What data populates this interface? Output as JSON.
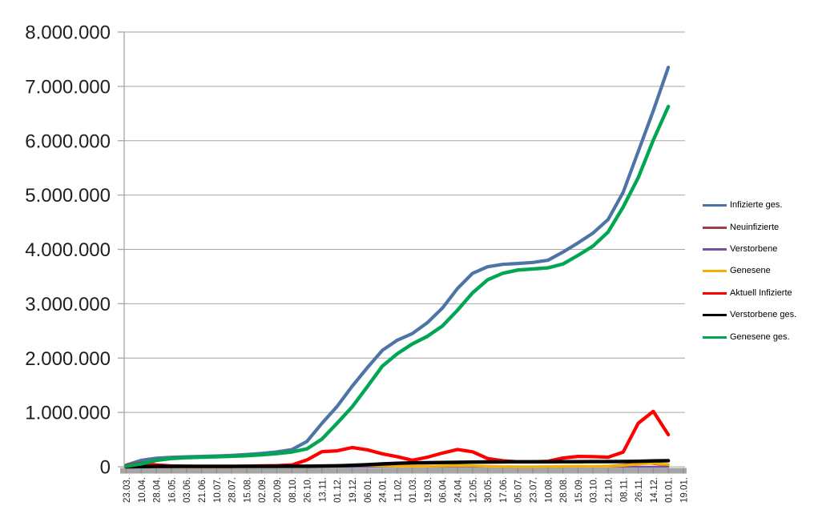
{
  "chart_data": {
    "type": "line",
    "title": "",
    "xlabel": "",
    "ylabel": "",
    "grid": true,
    "legend_position": "right",
    "ylim": [
      0,
      8000000
    ],
    "ytick_labels": [
      "0",
      "1.000.000",
      "2.000.000",
      "3.000.000",
      "4.000.000",
      "5.000.000",
      "6.000.000",
      "7.000.000",
      "8.000.000"
    ],
    "axis_color": "#a6a6a6",
    "band_tick_color": "#8f8f8f",
    "tick_label_color": "#1f1f1f",
    "categories": [
      "23.03.",
      "10.04.",
      "28.04.",
      "16.05.",
      "03.06.",
      "21.06.",
      "10.07.",
      "28.07.",
      "15.08.",
      "02.09.",
      "20.09.",
      "08.10.",
      "26.10.",
      "13.11.",
      "01.12.",
      "19.12.",
      "06.01.",
      "24.01.",
      "11.02.",
      "01.03.",
      "19.03.",
      "06.04.",
      "24.04.",
      "12.05.",
      "30.05.",
      "17.06.",
      "05.07.",
      "23.07.",
      "10.08.",
      "28.08.",
      "15.09.",
      "03.10.",
      "21.10.",
      "08.11.",
      "26.11.",
      "14.12.",
      "01.01.",
      "19.01."
    ],
    "series": [
      {
        "name": "Infizierte ges.",
        "color": "#4d74a6",
        "values": [
          30000,
          118000,
          157000,
          174000,
          183000,
          190000,
          198000,
          207000,
          225000,
          246000,
          273000,
          315000,
          465000,
          800000,
          1110000,
          1480000,
          1820000,
          2140000,
          2330000,
          2450000,
          2650000,
          2920000,
          3280000,
          3560000,
          3680000,
          3725000,
          3740000,
          3760000,
          3800000,
          3950000,
          4120000,
          4300000,
          4550000,
          5050000,
          5800000,
          6550000,
          7350000,
          null
        ]
      },
      {
        "name": "Neuinfizierte",
        "color": "#9e4143",
        "values": [
          4000,
          5000,
          1300,
          600,
          350,
          300,
          400,
          700,
          1400,
          1300,
          1800,
          4000,
          11200,
          23500,
          13600,
          31300,
          26400,
          12300,
          8000,
          7900,
          17500,
          20400,
          23400,
          14900,
          5400,
          1300,
          600,
          1900,
          5600,
          10300,
          11000,
          7800,
          17000,
          39600,
          76400,
          51300,
          26400,
          null
        ]
      },
      {
        "name": "Verstorbene",
        "color": "#7a4fa5",
        "values": [
          30,
          150,
          200,
          100,
          40,
          20,
          10,
          5,
          5,
          5,
          10,
          15,
          50,
          130,
          400,
          700,
          1100,
          850,
          550,
          350,
          250,
          300,
          250,
          250,
          150,
          100,
          50,
          20,
          20,
          20,
          60,
          70,
          80,
          200,
          350,
          500,
          350,
          null
        ]
      },
      {
        "name": "Genesene",
        "color": "#f2b000",
        "values": [
          1800,
          4500,
          3000,
          1200,
          500,
          400,
          350,
          600,
          900,
          1200,
          1500,
          2700,
          7000,
          17000,
          17500,
          23500,
          28000,
          18000,
          10000,
          6800,
          10000,
          16500,
          21500,
          19800,
          10500,
          3500,
          1100,
          900,
          3200,
          7500,
          10500,
          9200,
          11000,
          25000,
          48000,
          65000,
          40000,
          null
        ]
      },
      {
        "name": "Aktuell Infizierte",
        "color": "#fe0000",
        "values": [
          22000,
          62000,
          34000,
          14000,
          7500,
          5000,
          4900,
          4800,
          11700,
          15700,
          20600,
          33400,
          125000,
          278000,
          293000,
          354000,
          312000,
          238000,
          186000,
          120000,
          175000,
          252000,
          318000,
          275000,
          152000,
          110000,
          92000,
          90000,
          100000,
          160000,
          190000,
          185000,
          175000,
          270000,
          800000,
          1020000,
          590000,
          null
        ]
      },
      {
        "name": "Verstorbene ges.",
        "color": "#000000",
        "values": [
          200,
          2800,
          6100,
          7900,
          8600,
          8900,
          9100,
          9200,
          9300,
          9300,
          9400,
          9600,
          10200,
          12600,
          17200,
          26000,
          38000,
          52000,
          64000,
          70000,
          74500,
          77500,
          81500,
          85500,
          88000,
          90000,
          91000,
          91500,
          92000,
          92300,
          92900,
          93700,
          94800,
          96600,
          100100,
          107000,
          112000,
          null
        ]
      },
      {
        "name": "Genesene ges.",
        "color": "#00a651",
        "values": [
          10000,
          53000,
          117000,
          152000,
          167000,
          176000,
          184000,
          193000,
          204000,
          221000,
          243000,
          272000,
          330000,
          510000,
          800000,
          1100000,
          1470000,
          1850000,
          2080000,
          2260000,
          2400000,
          2590000,
          2880000,
          3200000,
          3440000,
          3560000,
          3620000,
          3640000,
          3660000,
          3730000,
          3890000,
          4060000,
          4320000,
          4780000,
          5320000,
          6010000,
          6630000,
          null
        ]
      }
    ]
  }
}
